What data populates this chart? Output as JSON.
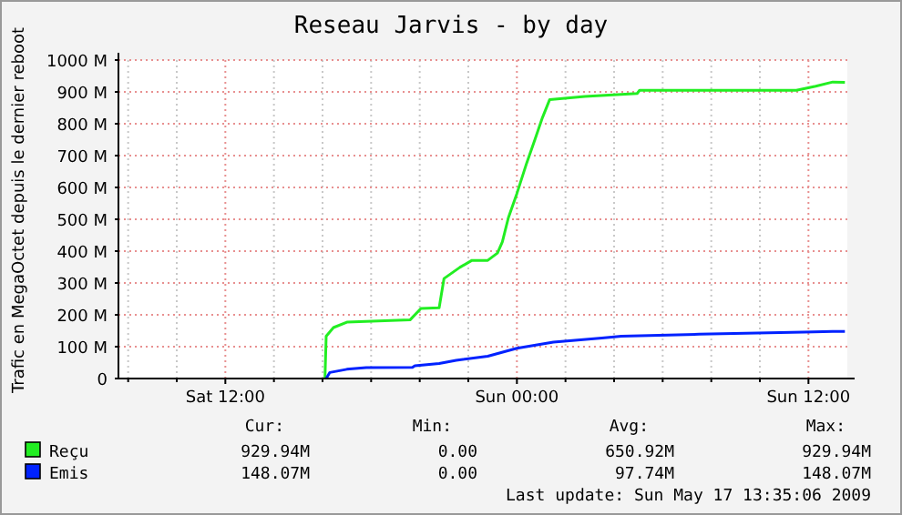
{
  "chart_data": {
    "type": "line",
    "title": "Reseau Jarvis - by day",
    "ylabel": "Trafic en MegaOctet depuis le dernier reboot",
    "xlim": [
      "2009-05-16T07:36",
      "2009-05-17T13:36"
    ],
    "xticks": [
      {
        "value": "2009-05-16T08:00",
        "label": null
      },
      {
        "value": "2009-05-16T10:00",
        "label": null
      },
      {
        "value": "2009-05-16T12:00",
        "label": "Sat 12:00"
      },
      {
        "value": "2009-05-16T14:00",
        "label": null
      },
      {
        "value": "2009-05-16T16:00",
        "label": null
      },
      {
        "value": "2009-05-16T18:00",
        "label": null
      },
      {
        "value": "2009-05-16T20:00",
        "label": null
      },
      {
        "value": "2009-05-16T22:00",
        "label": null
      },
      {
        "value": "2009-05-17T00:00",
        "label": "Sun 00:00"
      },
      {
        "value": "2009-05-17T02:00",
        "label": null
      },
      {
        "value": "2009-05-17T04:00",
        "label": null
      },
      {
        "value": "2009-05-17T06:00",
        "label": null
      },
      {
        "value": "2009-05-17T08:00",
        "label": null
      },
      {
        "value": "2009-05-17T10:00",
        "label": null
      },
      {
        "value": "2009-05-17T12:00",
        "label": "Sun 12:00"
      }
    ],
    "ylim": [
      0,
      1000
    ],
    "yticks": [
      0,
      {
        "value": 100,
        "label": "100 M"
      },
      {
        "value": 200,
        "label": "200 M"
      },
      {
        "value": 300,
        "label": "300 M"
      },
      {
        "value": 400,
        "label": "400 M"
      },
      {
        "value": 500,
        "label": "500 M"
      },
      {
        "value": 600,
        "label": "600 M"
      },
      {
        "value": 700,
        "label": "700 M"
      },
      {
        "value": 800,
        "label": "800 M"
      },
      {
        "value": 900,
        "label": "900 M"
      },
      {
        "value": 1000,
        "label": "1000 M"
      }
    ],
    "grid": true,
    "legend": "bottom",
    "series": [
      {
        "name": "Reçu",
        "color": "#22ee22",
        "x": [
          "2009-05-16T16:06",
          "2009-05-16T16:09",
          "2009-05-16T16:27",
          "2009-05-16T17:00",
          "2009-05-16T19:36",
          "2009-05-16T20:03",
          "2009-05-16T20:48",
          "2009-05-16T21:00",
          "2009-05-16T21:39",
          "2009-05-16T22:09",
          "2009-05-16T22:48",
          "2009-05-16T23:12",
          "2009-05-16T23:24",
          "2009-05-16T23:39",
          "2009-05-17T00:00",
          "2009-05-17T00:24",
          "2009-05-17T00:45",
          "2009-05-17T01:03",
          "2009-05-17T01:21",
          "2009-05-17T02:48",
          "2009-05-17T04:57",
          "2009-05-17T05:03",
          "2009-05-17T11:30",
          "2009-05-17T12:18",
          "2009-05-17T13:00",
          "2009-05-17T13:30"
        ],
        "values": [
          0,
          133,
          160,
          177,
          184,
          220,
          222,
          314,
          349,
          371,
          371,
          394,
          429,
          505,
          581,
          676,
          752,
          819,
          876,
          886,
          895,
          905,
          905,
          918,
          931,
          930
        ]
      },
      {
        "name": "Emis",
        "color": "#0022ff",
        "x": [
          "2009-05-16T16:09",
          "2009-05-16T16:18",
          "2009-05-16T17:00",
          "2009-05-16T17:48",
          "2009-05-16T19:42",
          "2009-05-16T19:48",
          "2009-05-16T20:48",
          "2009-05-16T21:30",
          "2009-05-16T22:48",
          "2009-05-17T00:00",
          "2009-05-17T01:30",
          "2009-05-17T03:30",
          "2009-05-17T04:18",
          "2009-05-17T07:30",
          "2009-05-17T11:48",
          "2009-05-17T13:00",
          "2009-05-17T13:30"
        ],
        "values": [
          0,
          19,
          29,
          34,
          35,
          40,
          47,
          57,
          70,
          95,
          114,
          127,
          133,
          139,
          146,
          148,
          148
        ]
      }
    ],
    "annotations": [
      "Cur:",
      "Min:",
      "Avg:",
      "Max:",
      "929.94M",
      "0.00",
      "650.92M",
      "929.94M",
      "148.07M",
      "0.00",
      "97.74M",
      "148.07M",
      "Last update: Sun May 17 13:35:06 2009"
    ]
  }
}
